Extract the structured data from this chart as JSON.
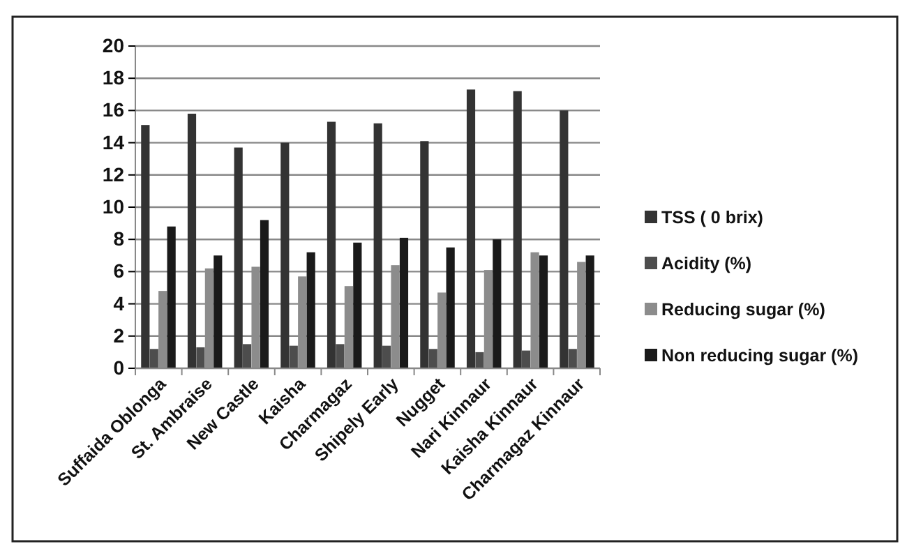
{
  "chart_data": {
    "type": "bar",
    "categories": [
      "Suffaida Oblonga",
      "St. Ambraise",
      "New Castle",
      "Kaisha",
      "Charmagaz",
      "Shipely Early",
      "Nugget",
      "Nari  Kinnaur",
      "Kaisha  Kinnaur",
      "Charmagaz Kinnaur"
    ],
    "series": [
      {
        "name": "TSS ( 0 brix)",
        "color": "#333333",
        "values": [
          15.1,
          15.8,
          13.7,
          14.0,
          15.3,
          15.2,
          14.1,
          17.3,
          17.2,
          16.0
        ]
      },
      {
        "name": "Acidity (%)",
        "color": "#4d4d4d",
        "values": [
          1.2,
          1.3,
          1.5,
          1.4,
          1.5,
          1.4,
          1.2,
          1.0,
          1.1,
          1.2
        ]
      },
      {
        "name": "Reducing sugar  (%)",
        "color": "#8c8c8c",
        "values": [
          4.8,
          6.2,
          6.3,
          5.7,
          5.1,
          6.4,
          4.7,
          6.1,
          7.2,
          6.6
        ]
      },
      {
        "name": "Non reducing sugar  (%)",
        "color": "#1a1a1a",
        "values": [
          8.8,
          7.0,
          9.2,
          7.2,
          7.8,
          8.1,
          7.5,
          8.0,
          7.0,
          7.0
        ]
      }
    ],
    "ylim": [
      0,
      20
    ],
    "yticks": [
      0,
      2,
      4,
      6,
      8,
      10,
      12,
      14,
      16,
      18,
      20
    ],
    "grid": "y",
    "legend": "right"
  }
}
